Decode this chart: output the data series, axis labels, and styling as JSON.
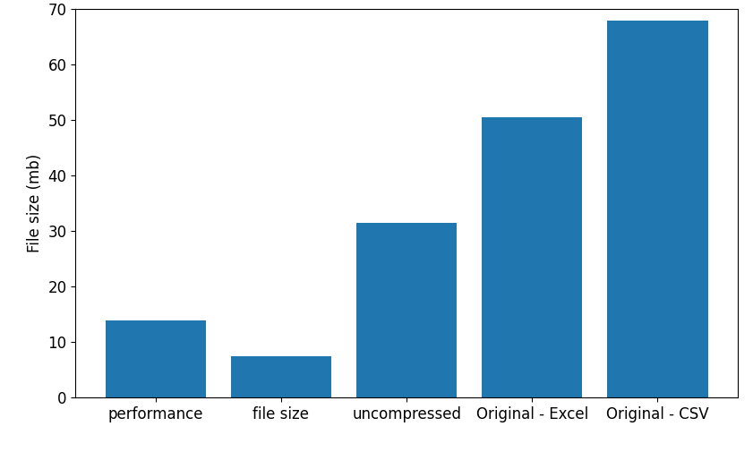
{
  "categories": [
    "performance",
    "file size",
    "uncompressed",
    "Original - Excel",
    "Original - CSV"
  ],
  "values": [
    14.0,
    7.5,
    31.5,
    50.5,
    68.0
  ],
  "bar_color": "#2076AE",
  "ylabel": "File size (mb)",
  "ylim": [
    0,
    70
  ],
  "yticks": [
    0,
    10,
    20,
    30,
    40,
    50,
    60,
    70
  ],
  "background_color": "#ffffff",
  "bar_width": 0.8,
  "tick_fontsize": 12,
  "ylabel_fontsize": 12
}
